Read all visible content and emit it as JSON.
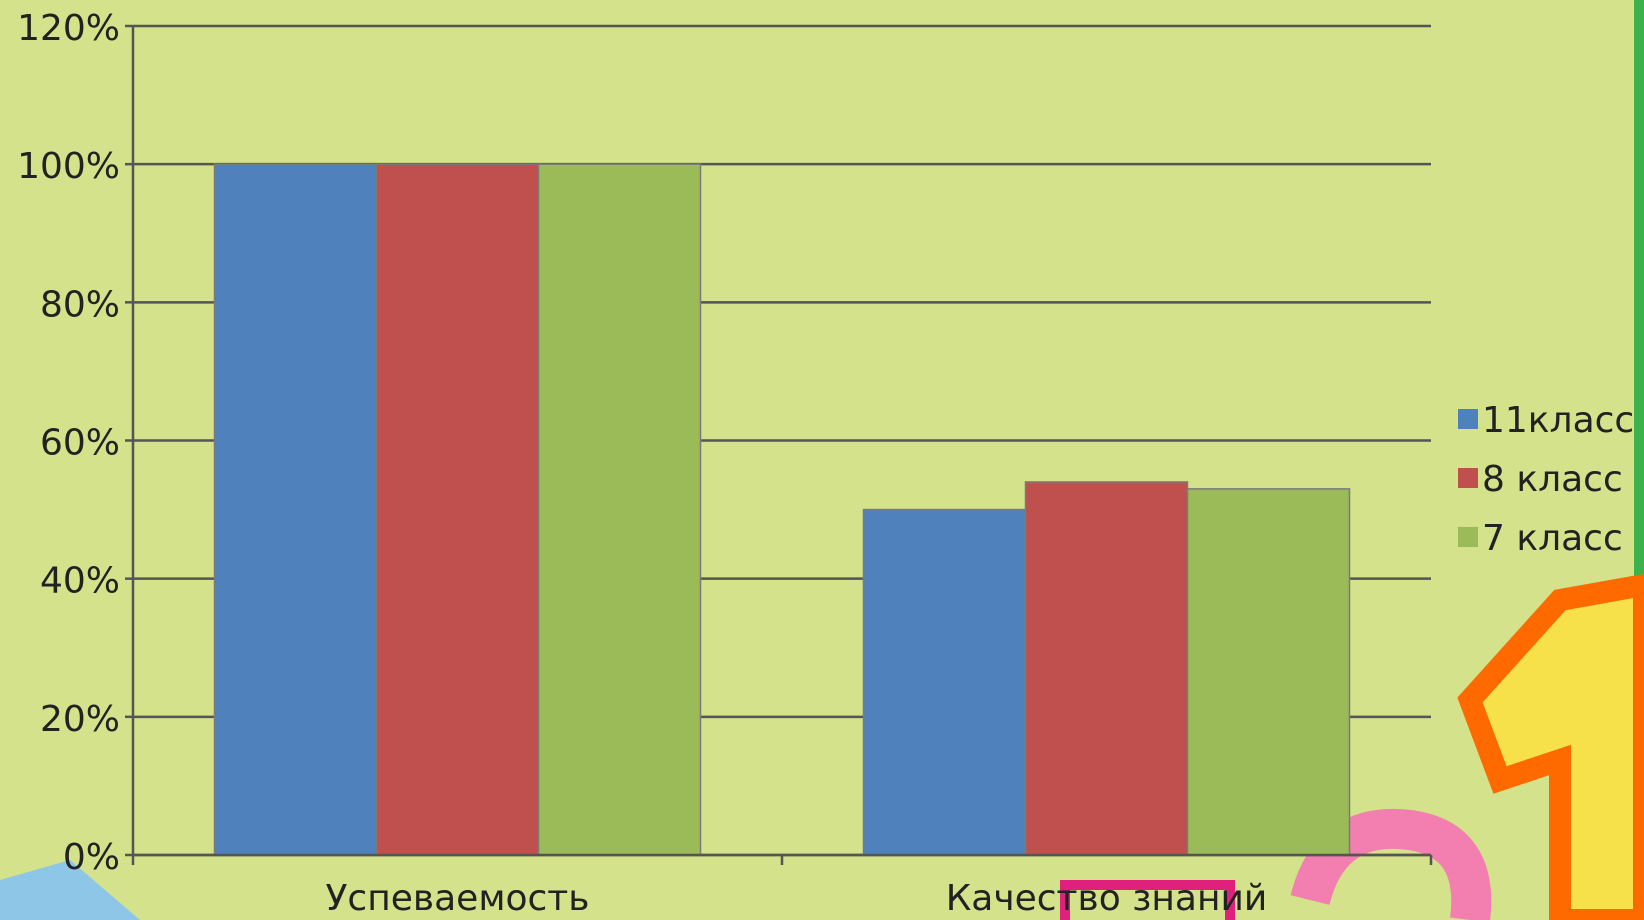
{
  "chart_data": {
    "type": "bar",
    "categories": [
      "Успеваемость",
      "Качество знаний"
    ],
    "series": [
      {
        "name": "11класс",
        "color": "#4f81bd",
        "values": [
          100,
          50
        ]
      },
      {
        "name": "8 класс",
        "color": "#c0504d",
        "values": [
          100,
          54
        ]
      },
      {
        "name": "7 класс",
        "color": "#9bbb59",
        "values": [
          100,
          53
        ]
      }
    ],
    "ylim": [
      0,
      120
    ],
    "yticks": [
      {
        "value": 0,
        "label": "0%"
      },
      {
        "value": 20,
        "label": "20%"
      },
      {
        "value": 40,
        "label": "40%"
      },
      {
        "value": 60,
        "label": "60%"
      },
      {
        "value": 80,
        "label": "80%"
      },
      {
        "value": 100,
        "label": "100%"
      },
      {
        "value": 120,
        "label": "120%"
      }
    ],
    "grid": true,
    "legend": "right"
  }
}
